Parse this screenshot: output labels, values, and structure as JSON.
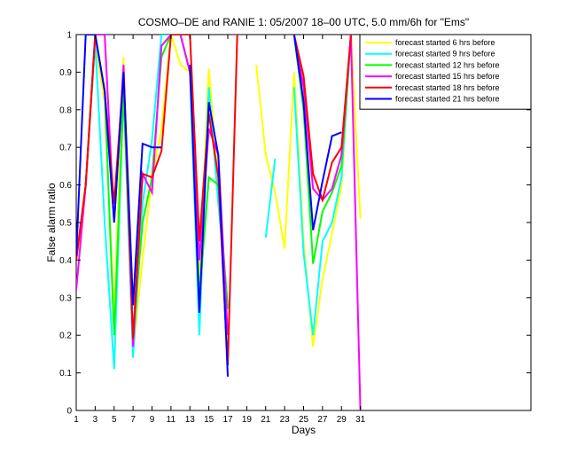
{
  "chart_data": {
    "type": "line",
    "title": "COSMO–DE and RANIE 1: 05/2007 18–00 UTC, 5.0 mm/6h for \"Ems\"",
    "xlabel": "Days",
    "ylabel": "False alarm ratio",
    "xlim": [
      1,
      49
    ],
    "ylim": [
      0,
      1
    ],
    "x_ticks": [
      1,
      3,
      5,
      7,
      9,
      11,
      13,
      15,
      17,
      19,
      21,
      23,
      25,
      27,
      29,
      31
    ],
    "y_ticks": [
      0,
      0.1,
      0.2,
      0.3,
      0.4,
      0.5,
      0.6,
      0.7,
      0.8,
      0.9,
      1
    ],
    "grid": false,
    "legend_position": "top-right",
    "series": [
      {
        "name": "forecast started 6 hrs before",
        "color": "#ffff00",
        "points": [
          [
            1,
            0.4
          ],
          [
            2,
            0.6
          ],
          [
            3,
            0.98
          ],
          [
            4,
            0.82
          ],
          [
            5,
            0.25
          ],
          [
            6,
            0.94
          ],
          [
            7,
            0.16
          ],
          [
            8,
            0.4
          ],
          [
            9,
            0.62
          ],
          [
            10,
            0.75
          ],
          [
            11,
            1
          ],
          [
            12,
            0.92
          ],
          [
            13,
            0.9
          ],
          [
            14,
            0.35
          ],
          [
            15,
            0.91
          ],
          [
            16,
            0.6
          ],
          [
            17,
            0.2
          ],
          [
            18,
            null
          ],
          [
            19,
            null
          ],
          [
            20,
            0.92
          ],
          [
            21,
            0.68
          ],
          [
            22,
            0.58
          ],
          [
            23,
            0.43
          ],
          [
            24,
            0.9
          ],
          [
            25,
            0.45
          ],
          [
            26,
            0.17
          ],
          [
            27,
            0.35
          ],
          [
            28,
            0.47
          ],
          [
            29,
            0.6
          ],
          [
            30,
            1
          ],
          [
            31,
            0.51
          ]
        ]
      },
      {
        "name": "forecast started 9 hrs before",
        "color": "#00ffff",
        "points": [
          [
            1,
            0.4
          ],
          [
            2,
            0.6
          ],
          [
            3,
            0.98
          ],
          [
            4,
            0.5
          ],
          [
            5,
            0.11
          ],
          [
            6,
            0.85
          ],
          [
            7,
            0.14
          ],
          [
            8,
            0.55
          ],
          [
            9,
            0.72
          ],
          [
            10,
            1
          ],
          [
            11,
            1
          ],
          [
            12,
            1
          ],
          [
            13,
            0.9
          ],
          [
            14,
            0.2
          ],
          [
            15,
            0.86
          ],
          [
            16,
            0.55
          ],
          [
            17,
            0.28
          ],
          [
            18,
            null
          ],
          [
            19,
            null
          ],
          [
            20,
            null
          ],
          [
            21,
            0.46
          ],
          [
            22,
            0.67
          ],
          [
            23,
            null
          ],
          [
            24,
            0.86
          ],
          [
            25,
            0.42
          ],
          [
            26,
            0.2
          ],
          [
            27,
            0.45
          ],
          [
            28,
            0.5
          ],
          [
            29,
            0.62
          ],
          [
            30,
            1
          ],
          [
            31,
            null
          ]
        ]
      },
      {
        "name": "forecast started 12 hrs before",
        "color": "#00ff00",
        "points": [
          [
            1,
            0.4
          ],
          [
            2,
            0.6
          ],
          [
            3,
            1
          ],
          [
            4,
            0.85
          ],
          [
            5,
            0.2
          ],
          [
            6,
            0.85
          ],
          [
            7,
            0.2
          ],
          [
            8,
            0.5
          ],
          [
            9,
            0.62
          ],
          [
            10,
            0.94
          ],
          [
            11,
            1
          ],
          [
            12,
            1
          ],
          [
            13,
            0.9
          ],
          [
            14,
            0.3
          ],
          [
            15,
            0.62
          ],
          [
            16,
            0.6
          ],
          [
            17,
            0.27
          ],
          [
            18,
            null
          ],
          [
            19,
            null
          ],
          [
            20,
            null
          ],
          [
            21,
            null
          ],
          [
            22,
            null
          ],
          [
            23,
            null
          ],
          [
            24,
            1
          ],
          [
            25,
            0.8
          ],
          [
            26,
            0.39
          ],
          [
            27,
            0.53
          ],
          [
            28,
            0.58
          ],
          [
            29,
            0.65
          ],
          [
            30,
            1
          ],
          [
            31,
            null
          ]
        ]
      },
      {
        "name": "forecast started 15 hrs before",
        "color": "#ff00ff",
        "points": [
          [
            1,
            0.32
          ],
          [
            2,
            0.6
          ],
          [
            3,
            1
          ],
          [
            4,
            1
          ],
          [
            5,
            0.5
          ],
          [
            6,
            0.92
          ],
          [
            7,
            0.17
          ],
          [
            8,
            0.63
          ],
          [
            9,
            0.58
          ],
          [
            10,
            0.97
          ],
          [
            11,
            1
          ],
          [
            12,
            1
          ],
          [
            13,
            0.9
          ],
          [
            14,
            0.4
          ],
          [
            15,
            0.75
          ],
          [
            16,
            0.68
          ],
          [
            17,
            0.2
          ],
          [
            18,
            null
          ],
          [
            19,
            null
          ],
          [
            20,
            null
          ],
          [
            21,
            null
          ],
          [
            22,
            null
          ],
          [
            23,
            null
          ],
          [
            24,
            1
          ],
          [
            25,
            0.86
          ],
          [
            26,
            0.59
          ],
          [
            27,
            0.56
          ],
          [
            28,
            0.59
          ],
          [
            29,
            0.68
          ],
          [
            30,
            1
          ],
          [
            31,
            0
          ]
        ]
      },
      {
        "name": "forecast started 18 hrs before",
        "color": "#ff0000",
        "points": [
          [
            1,
            0.4
          ],
          [
            2,
            0.6
          ],
          [
            3,
            1
          ],
          [
            4,
            0.85
          ],
          [
            5,
            0.55
          ],
          [
            6,
            0.9
          ],
          [
            7,
            0.19
          ],
          [
            8,
            0.63
          ],
          [
            9,
            0.62
          ],
          [
            10,
            0.69
          ],
          [
            11,
            1
          ],
          [
            12,
            1
          ],
          [
            13,
            1
          ],
          [
            14,
            0.45
          ],
          [
            15,
            0.79
          ],
          [
            16,
            0.62
          ],
          [
            17,
            0.12
          ],
          [
            18,
            1
          ],
          [
            19,
            null
          ],
          [
            20,
            null
          ],
          [
            21,
            null
          ],
          [
            22,
            null
          ],
          [
            23,
            null
          ],
          [
            24,
            1
          ],
          [
            25,
            0.89
          ],
          [
            26,
            0.63
          ],
          [
            27,
            0.56
          ],
          [
            28,
            0.66
          ],
          [
            29,
            0.7
          ],
          [
            30,
            1
          ],
          [
            31,
            null
          ]
        ]
      },
      {
        "name": "forecast started 21 hrs before",
        "color": "#0000ff",
        "points": [
          [
            1,
            0.41
          ],
          [
            2,
            1
          ],
          [
            3,
            1
          ],
          [
            4,
            0.85
          ],
          [
            5,
            0.5
          ],
          [
            6,
            0.9
          ],
          [
            7,
            0.28
          ],
          [
            8,
            0.71
          ],
          [
            9,
            0.7
          ],
          [
            10,
            0.7
          ],
          [
            11,
            null
          ],
          [
            12,
            null
          ],
          [
            13,
            0.92
          ],
          [
            14,
            0.26
          ],
          [
            15,
            0.82
          ],
          [
            16,
            0.68
          ],
          [
            17,
            0.09
          ],
          [
            18,
            null
          ],
          [
            19,
            null
          ],
          [
            20,
            null
          ],
          [
            21,
            null
          ],
          [
            22,
            null
          ],
          [
            23,
            null
          ],
          [
            24,
            1
          ],
          [
            25,
            0.82
          ],
          [
            26,
            0.48
          ],
          [
            27,
            0.61
          ],
          [
            28,
            0.73
          ],
          [
            29,
            0.74
          ],
          [
            30,
            null
          ],
          [
            31,
            null
          ]
        ]
      }
    ]
  }
}
